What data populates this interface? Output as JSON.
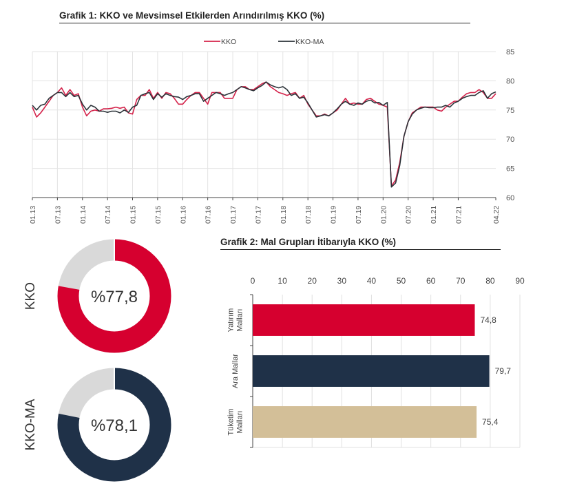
{
  "chart_data": [
    {
      "type": "line",
      "title": "Grafik 1: KKO ve Mevsimsel Etkilerden Arındırılmış KKO (%)",
      "ylim": [
        60,
        85
      ],
      "yticks": [
        60,
        65,
        70,
        75,
        80,
        85
      ],
      "x_start": "01.13",
      "x_end": "04.22",
      "xtick_labels": [
        "01.13",
        "07.13",
        "01.14",
        "07.14",
        "01.15",
        "07.15",
        "01.16",
        "07.16",
        "01.17",
        "07.17",
        "01.18",
        "07.18",
        "01.19",
        "07.19",
        "01.20",
        "07.20",
        "01.21",
        "07.21",
        "04.22"
      ],
      "legend": "top-center",
      "grid": true,
      "series": [
        {
          "name": "KKO",
          "color": "#d4224a",
          "values": [
            75.5,
            73.8,
            74.5,
            75.5,
            76.5,
            77.5,
            78,
            78.8,
            77.5,
            78.5,
            77.5,
            77.8,
            75.5,
            74,
            74.8,
            75,
            74.8,
            75.2,
            75.2,
            75.3,
            75.5,
            75.3,
            75.5,
            74.5,
            74.3,
            76.8,
            77.5,
            77.5,
            78.5,
            77,
            78,
            77,
            78,
            77.8,
            77,
            76,
            76,
            76.8,
            77.5,
            78,
            78,
            77,
            76,
            78,
            78,
            78,
            77,
            77,
            77,
            78.5,
            79,
            79,
            78.5,
            78.5,
            79,
            79.5,
            79.8,
            79,
            78.5,
            78,
            77.8,
            77.5,
            77.8,
            78,
            77,
            77.5,
            76,
            75,
            74,
            74,
            74.3,
            74,
            74.5,
            75,
            76,
            77,
            76,
            76.2,
            76,
            76,
            76.8,
            77,
            76.5,
            76,
            75.8,
            75.5,
            62,
            63,
            66,
            70.5,
            73,
            74.5,
            75,
            75.5,
            75.5,
            75.5,
            75.5,
            75,
            74.8,
            75.5,
            76,
            76.5,
            76.5,
            77.2,
            77.8,
            78,
            78,
            78.5,
            78,
            77,
            77,
            77.8
          ]
        },
        {
          "name": "KKO-MA",
          "color": "#2b3238",
          "values": [
            75.8,
            75,
            75.8,
            76,
            77,
            77.5,
            78,
            78,
            77.3,
            78,
            77.3,
            77.5,
            76,
            75,
            75.8,
            75.5,
            74.8,
            74.8,
            74.6,
            74.8,
            74.8,
            74.5,
            75,
            74.6,
            75.5,
            75.8,
            77.5,
            77.8,
            78,
            76.8,
            77.8,
            77.2,
            77.8,
            77.5,
            77.3,
            77.2,
            76.8,
            77.3,
            77.5,
            77.8,
            77.8,
            76.5,
            77,
            77.5,
            78,
            77.8,
            77.5,
            77.8,
            78,
            78.5,
            79,
            78.8,
            78.5,
            78.3,
            78.8,
            79.2,
            79.8,
            79.3,
            79,
            78.8,
            79,
            78.5,
            77.5,
            77.8,
            77,
            77.2,
            76.2,
            75,
            73.8,
            74,
            74.2,
            74,
            74.5,
            75.2,
            76,
            76.5,
            76,
            75.8,
            76.2,
            76,
            76.5,
            76.7,
            76.2,
            76.3,
            75.8,
            76.3,
            61.8,
            62.5,
            65.5,
            70.5,
            73,
            74.3,
            75,
            75.3,
            75.5,
            75.4,
            75.4,
            75.5,
            75.5,
            75.8,
            75.5,
            76.2,
            76.5,
            77,
            77.3,
            77.5,
            77.5,
            78,
            78.3,
            77,
            77.8,
            78.1
          ]
        }
      ]
    },
    {
      "type": "pie",
      "subtype": "donut",
      "items": [
        {
          "name": "KKO",
          "value": 77.8,
          "label": "%77,8",
          "color": "#d6002f"
        },
        {
          "name": "KKO-MA",
          "value": 78.1,
          "label": "%78,1",
          "color": "#1f3148"
        }
      ],
      "remainder_color": "#d9d9d9"
    },
    {
      "type": "bar",
      "orientation": "horizontal",
      "title": "Grafik 2: Mal Grupları İtibarıyla KKO (%)",
      "xlim": [
        0,
        90
      ],
      "xticks": [
        0,
        10,
        20,
        30,
        40,
        50,
        60,
        70,
        80,
        90
      ],
      "categories": [
        [
          "Yatırım",
          "Malları"
        ],
        [
          "Ara Mallar"
        ],
        [
          "Tüketim",
          "Malları"
        ]
      ],
      "values": [
        74.8,
        79.7,
        75.4
      ],
      "value_labels": [
        "74,8",
        "79,7",
        "75,4"
      ],
      "colors": [
        "#d6002f",
        "#1f3148",
        "#d3bf98"
      ]
    }
  ]
}
